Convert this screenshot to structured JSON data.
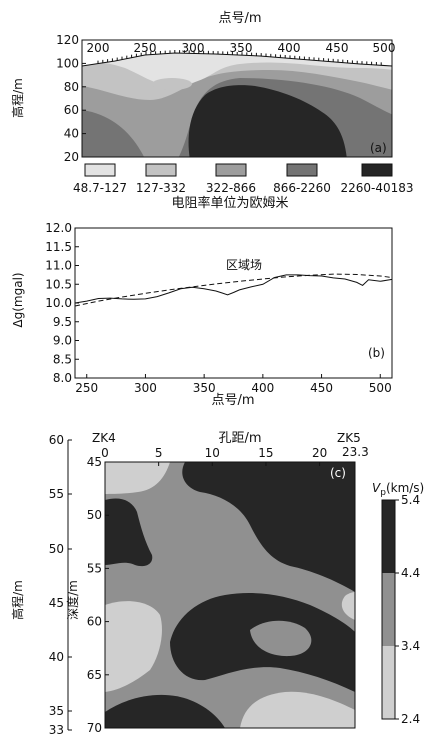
{
  "panel_a": {
    "xlabel": "点号/m",
    "ylabel": "高程/m",
    "panel_label": "(a)",
    "x_ticks": [
      "200",
      "250",
      "300",
      "350",
      "400",
      "450",
      "500"
    ],
    "y_ticks": [
      "120",
      "100",
      "80",
      "60",
      "40",
      "20"
    ],
    "legend": [
      {
        "label": "48.7-127",
        "color": "#e3e3e3"
      },
      {
        "label": "127-332",
        "color": "#c3c3c3"
      },
      {
        "label": "322-866",
        "color": "#9d9d9d"
      },
      {
        "label": "866-2260",
        "color": "#747474"
      },
      {
        "label": "2260-40183",
        "color": "#262626"
      }
    ],
    "unit_note": "电阻率单位为欧姆米"
  },
  "chart_data": [
    {
      "type": "line",
      "panel": "(b)",
      "xlabel": "点号/m",
      "ylabel": "Δg(mgal)",
      "xlim": [
        240,
        510
      ],
      "ylim": [
        8.0,
        12.0
      ],
      "x_ticks": [
        "250",
        "300",
        "350",
        "400",
        "450",
        "500"
      ],
      "y_ticks": [
        "12.0",
        "11.5",
        "11.0",
        "10.5",
        "10.0",
        "9.5",
        "9.0",
        "8.5",
        "8.0"
      ],
      "annotation": "区域场",
      "series": [
        {
          "style": "solid",
          "x": [
            240,
            250,
            260,
            270,
            280,
            290,
            300,
            310,
            320,
            330,
            340,
            350,
            360,
            365,
            370,
            375,
            380,
            390,
            400,
            410,
            420,
            430,
            440,
            450,
            460,
            470,
            480,
            485,
            490,
            500,
            510
          ],
          "y": [
            10.0,
            10.05,
            10.12,
            10.13,
            10.11,
            10.1,
            10.11,
            10.17,
            10.27,
            10.38,
            10.42,
            10.38,
            10.32,
            10.27,
            10.22,
            10.28,
            10.35,
            10.43,
            10.5,
            10.68,
            10.75,
            10.75,
            10.73,
            10.72,
            10.67,
            10.64,
            10.55,
            10.47,
            10.62,
            10.58,
            10.63
          ]
        },
        {
          "style": "dashed",
          "x": [
            240,
            260,
            280,
            300,
            320,
            340,
            360,
            380,
            400,
            420,
            440,
            460,
            480,
            500,
            510
          ],
          "y": [
            9.92,
            10.05,
            10.16,
            10.26,
            10.35,
            10.43,
            10.51,
            10.58,
            10.64,
            10.7,
            10.74,
            10.77,
            10.76,
            10.72,
            10.68
          ]
        }
      ]
    }
  ],
  "panel_c": {
    "left_axis_label": "高程/m",
    "depth_label": "深度/m",
    "top_label": "孔距/m",
    "panel_label": "(c)",
    "zk4": "ZK4",
    "zk5": "ZK5",
    "zk5_distance": "23.3",
    "elev_ticks": [
      "60",
      "55",
      "50",
      "45",
      "40",
      "35",
      "33"
    ],
    "depth_ticks": [
      "45",
      "50",
      "55",
      "60",
      "65",
      "70"
    ],
    "dist_ticks": [
      "0",
      "5",
      "10",
      "15",
      "20"
    ],
    "colorbar_title": "Vp(km/s)",
    "colorbar_ticks": [
      "5.4",
      "4.4",
      "3.4",
      "2.4"
    ],
    "colors": {
      "high": "#262626",
      "mid": "#909090",
      "low": "#cfcfcf"
    }
  }
}
